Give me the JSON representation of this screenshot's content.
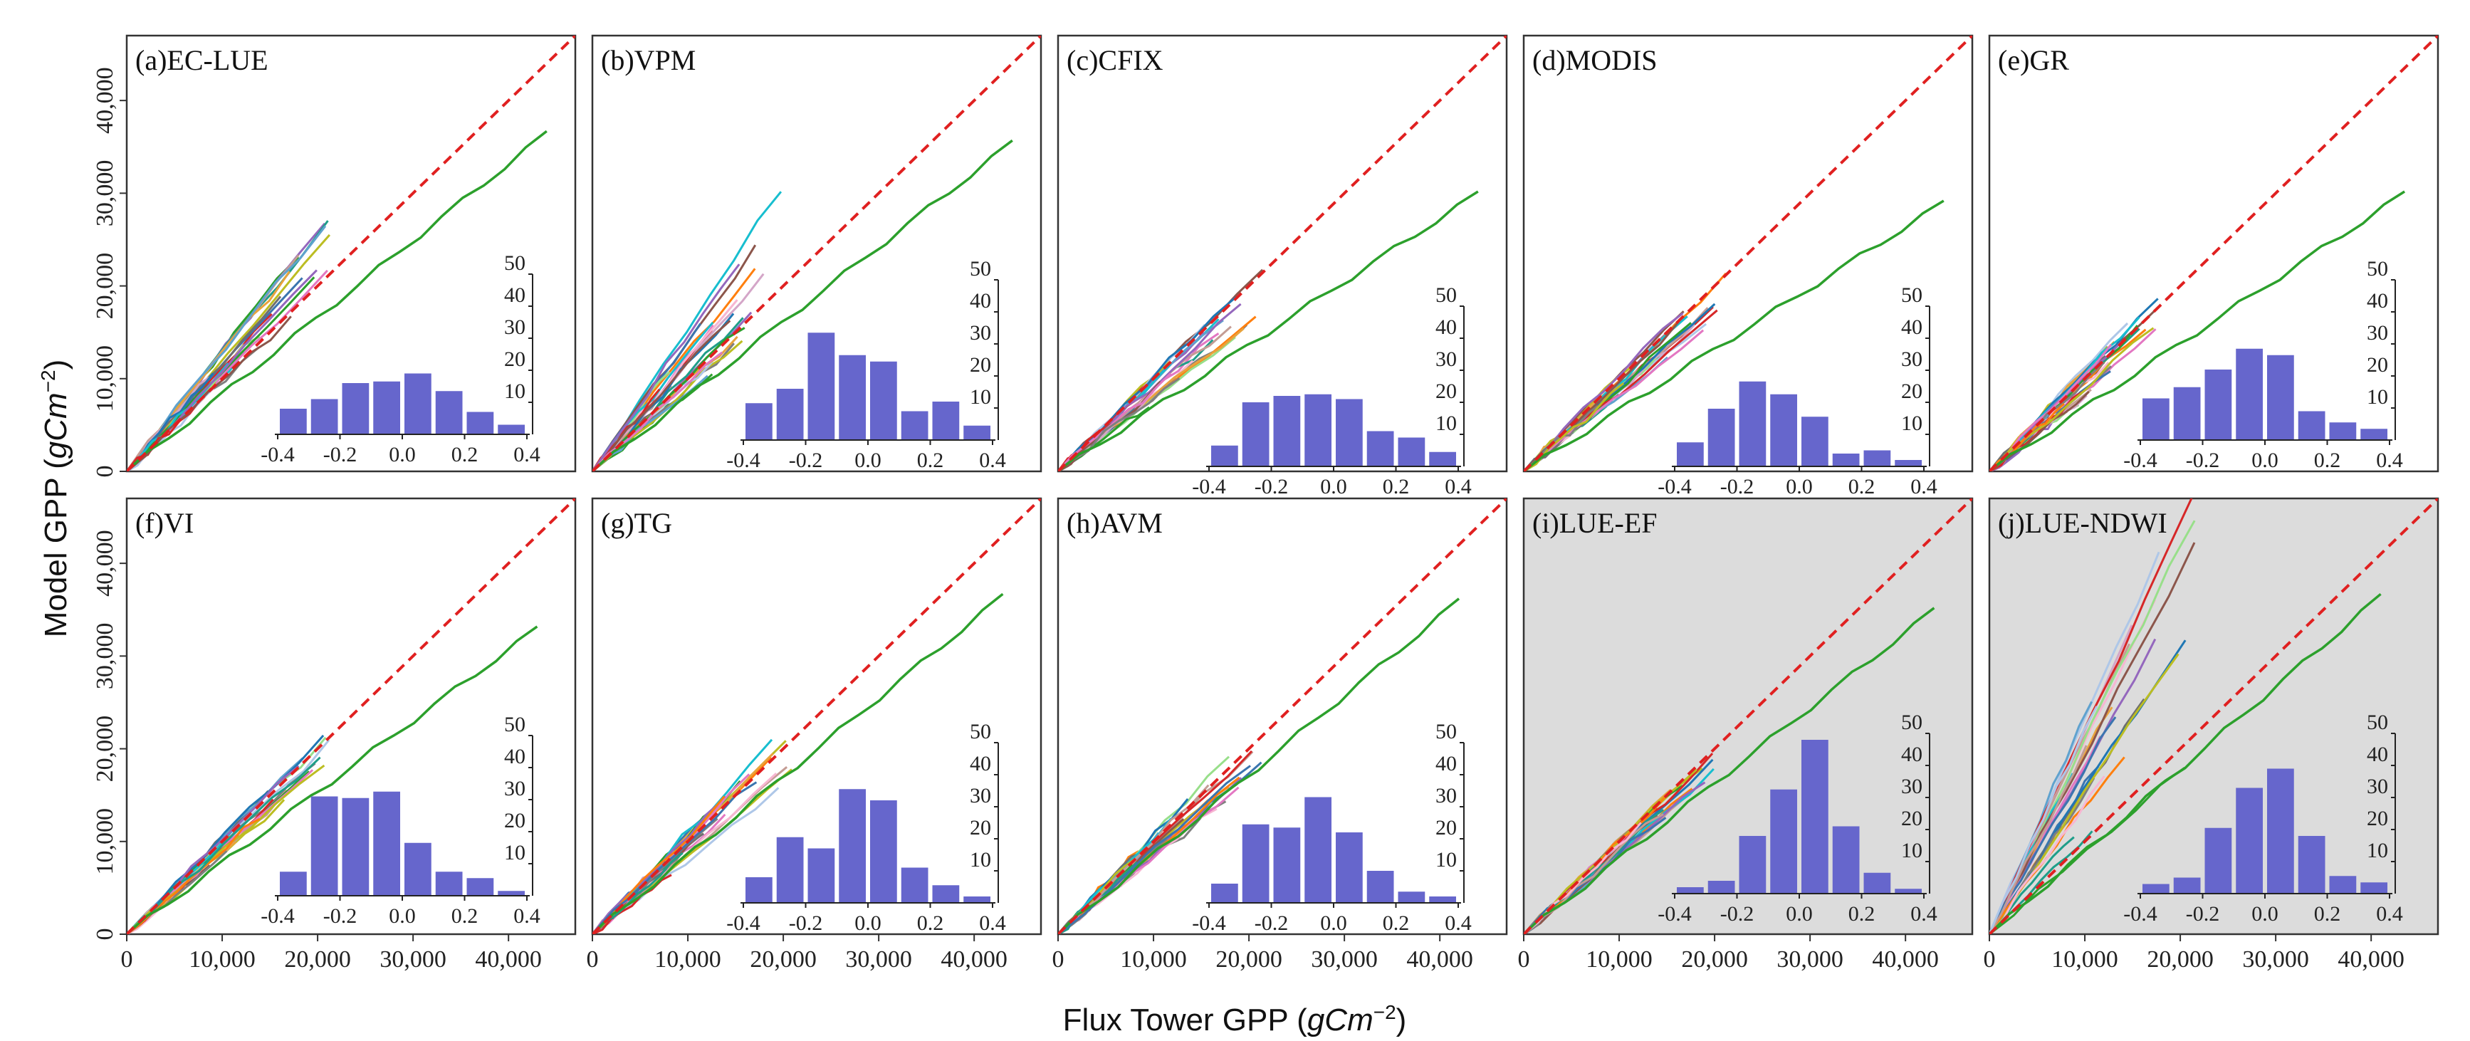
{
  "figure": {
    "ylabel": "Model GPP",
    "xlabel": "Flux Tower GPP",
    "unit": "gCm",
    "unit_exp": "−2"
  },
  "chart_data": {
    "type": "line",
    "main_axes": {
      "xlim": [
        0,
        47000
      ],
      "ylim": [
        0,
        47000
      ],
      "x_ticks": [
        0,
        10000,
        20000,
        30000,
        40000
      ],
      "x_tick_labels": [
        "0",
        "10,000",
        "20,000",
        "30,000",
        "40,000"
      ],
      "y_ticks": [
        0,
        10000,
        20000,
        30000,
        40000
      ],
      "y_tick_labels": [
        "0",
        "10,000",
        "20,000",
        "30,000",
        "40,000"
      ],
      "reference_line": "1:1 (red dashed)"
    },
    "inset_axes": {
      "type": "bar",
      "bins": [
        -0.4,
        -0.3,
        -0.2,
        -0.1,
        0.0,
        0.1,
        0.2,
        0.3,
        0.4
      ],
      "x_tick_labels": [
        "-0.4",
        "-0.2",
        "0.0",
        "0.2",
        "0.4"
      ],
      "ylim": [
        0,
        50
      ],
      "y_ticks": [
        10,
        20,
        30,
        40,
        50
      ]
    },
    "panels": [
      {
        "label": "(a)EC-LUE",
        "shaded": false,
        "green_end": [
          44000,
          36500
        ],
        "site_slope_range": [
          0.95,
          1.32
        ],
        "site_x_max": 22000,
        "hist": [
          8,
          11,
          16,
          16.5,
          19,
          13.5,
          7,
          3
        ]
      },
      {
        "label": "(b)VPM",
        "shaded": false,
        "green_end": [
          44000,
          35500
        ],
        "site_slope_range": [
          0.85,
          1.65
        ],
        "site_x_max": 20000,
        "hist": [
          11.5,
          16,
          33.5,
          26.5,
          24.5,
          9,
          12,
          4.5
        ]
      },
      {
        "label": "(c)CFIX",
        "shaded": false,
        "green_end": [
          44000,
          30000
        ],
        "site_slope_range": [
          0.75,
          1.05
        ],
        "site_x_max": 22000,
        "hist": [
          6.5,
          20,
          22,
          22.5,
          21,
          11,
          9,
          4.5
        ]
      },
      {
        "label": "(d)MODIS",
        "shaded": false,
        "green_end": [
          44000,
          29000
        ],
        "site_slope_range": [
          0.8,
          1.05
        ],
        "site_x_max": 22000,
        "hist": [
          7.5,
          18,
          26.5,
          22.5,
          15.5,
          4,
          5,
          2
        ]
      },
      {
        "label": "(e)GR",
        "shaded": false,
        "green_end": [
          43500,
          30000
        ],
        "site_slope_range": [
          0.8,
          1.1
        ],
        "site_x_max": 21000,
        "hist": [
          13,
          16.5,
          22,
          28.5,
          26.5,
          9,
          5.5,
          3.5
        ]
      },
      {
        "label": "(f)VI",
        "shaded": false,
        "green_end": [
          43000,
          33000
        ],
        "site_slope_range": [
          0.85,
          1.05
        ],
        "site_x_max": 22000,
        "hist": [
          7.5,
          31,
          30.5,
          32.5,
          16.5,
          7.5,
          5.5,
          1.5
        ]
      },
      {
        "label": "(g)TG",
        "shaded": false,
        "green_end": [
          43000,
          36500
        ],
        "site_slope_range": [
          0.8,
          1.1
        ],
        "site_x_max": 21000,
        "hist": [
          8,
          20.5,
          17,
          35.5,
          32,
          11,
          5.5,
          2
        ]
      },
      {
        "label": "(h)AVM",
        "shaded": false,
        "green_end": [
          42000,
          36000
        ],
        "site_slope_range": [
          0.8,
          1.1
        ],
        "site_x_max": 22000,
        "hist": [
          6,
          24.5,
          23.5,
          33,
          22,
          10,
          3.5,
          2
        ]
      },
      {
        "label": "(i)LUE-EF",
        "shaded": true,
        "green_end": [
          43000,
          35000
        ],
        "site_slope_range": [
          0.85,
          1.02
        ],
        "site_x_max": 20000,
        "hist": [
          2,
          4,
          18,
          32.5,
          48,
          21,
          6.5,
          1.5
        ]
      },
      {
        "label": "(j)LUE-NDWI",
        "shaded": true,
        "green_end": [
          41000,
          36500
        ],
        "site_slope_range": [
          0.85,
          2.4
        ],
        "site_x_max": 22000,
        "hist": [
          3,
          5,
          20.5,
          33,
          39,
          18,
          5.5,
          3.5
        ]
      }
    ]
  }
}
